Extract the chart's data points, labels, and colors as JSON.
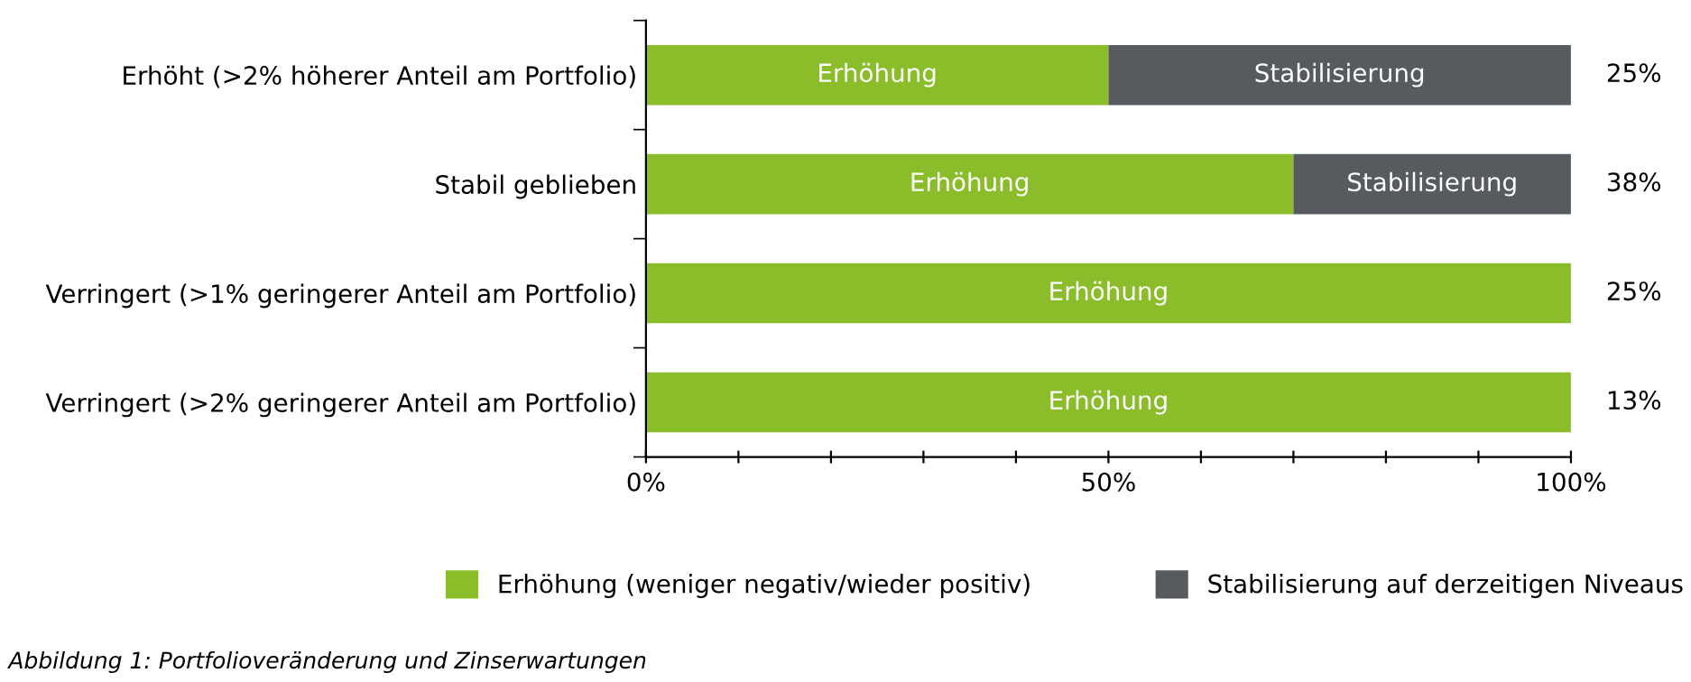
{
  "chart_data": {
    "type": "bar",
    "orientation": "horizontal",
    "stacked": true,
    "categories": [
      "Erhöht (>2% höherer Anteil am Portfolio)",
      "Stabil geblieben",
      "Verringert (>1% geringerer Anteil am Portfolio)",
      "Verringert (>2% geringerer Anteil am Portfolio)"
    ],
    "series": [
      {
        "name": "Erhöhung (weniger negativ/wieder positiv)",
        "color": "#8bbd2b",
        "values": [
          50,
          70,
          100,
          100
        ],
        "value_labels": [
          "Erhöhung",
          "Erhöhung",
          "Erhöhung",
          "Erhöhung"
        ]
      },
      {
        "name": "Stabilisierung auf derzeitigen Niveaus",
        "color": "#575b5f",
        "values": [
          50,
          30,
          0,
          0
        ],
        "value_labels": [
          "Stabilisierung",
          "Stabilisierung",
          null,
          null
        ]
      }
    ],
    "xlim": [
      0,
      100
    ],
    "xticks": [
      {
        "value": 0,
        "label": "0%"
      },
      {
        "value": 10,
        "label": null
      },
      {
        "value": 20,
        "label": null
      },
      {
        "value": 30,
        "label": null
      },
      {
        "value": 40,
        "label": null
      },
      {
        "value": 50,
        "label": "50%"
      },
      {
        "value": 60,
        "label": null
      },
      {
        "value": 70,
        "label": null
      },
      {
        "value": 80,
        "label": null
      },
      {
        "value": 90,
        "label": null
      },
      {
        "value": 100,
        "label": "100%"
      }
    ],
    "grid": false,
    "legend": "bottom",
    "annotations": [
      "25%",
      "38%",
      "25%",
      "13%",
      "Abbildung 1: Portfolioveränderung und Zinserwartungen"
    ]
  }
}
